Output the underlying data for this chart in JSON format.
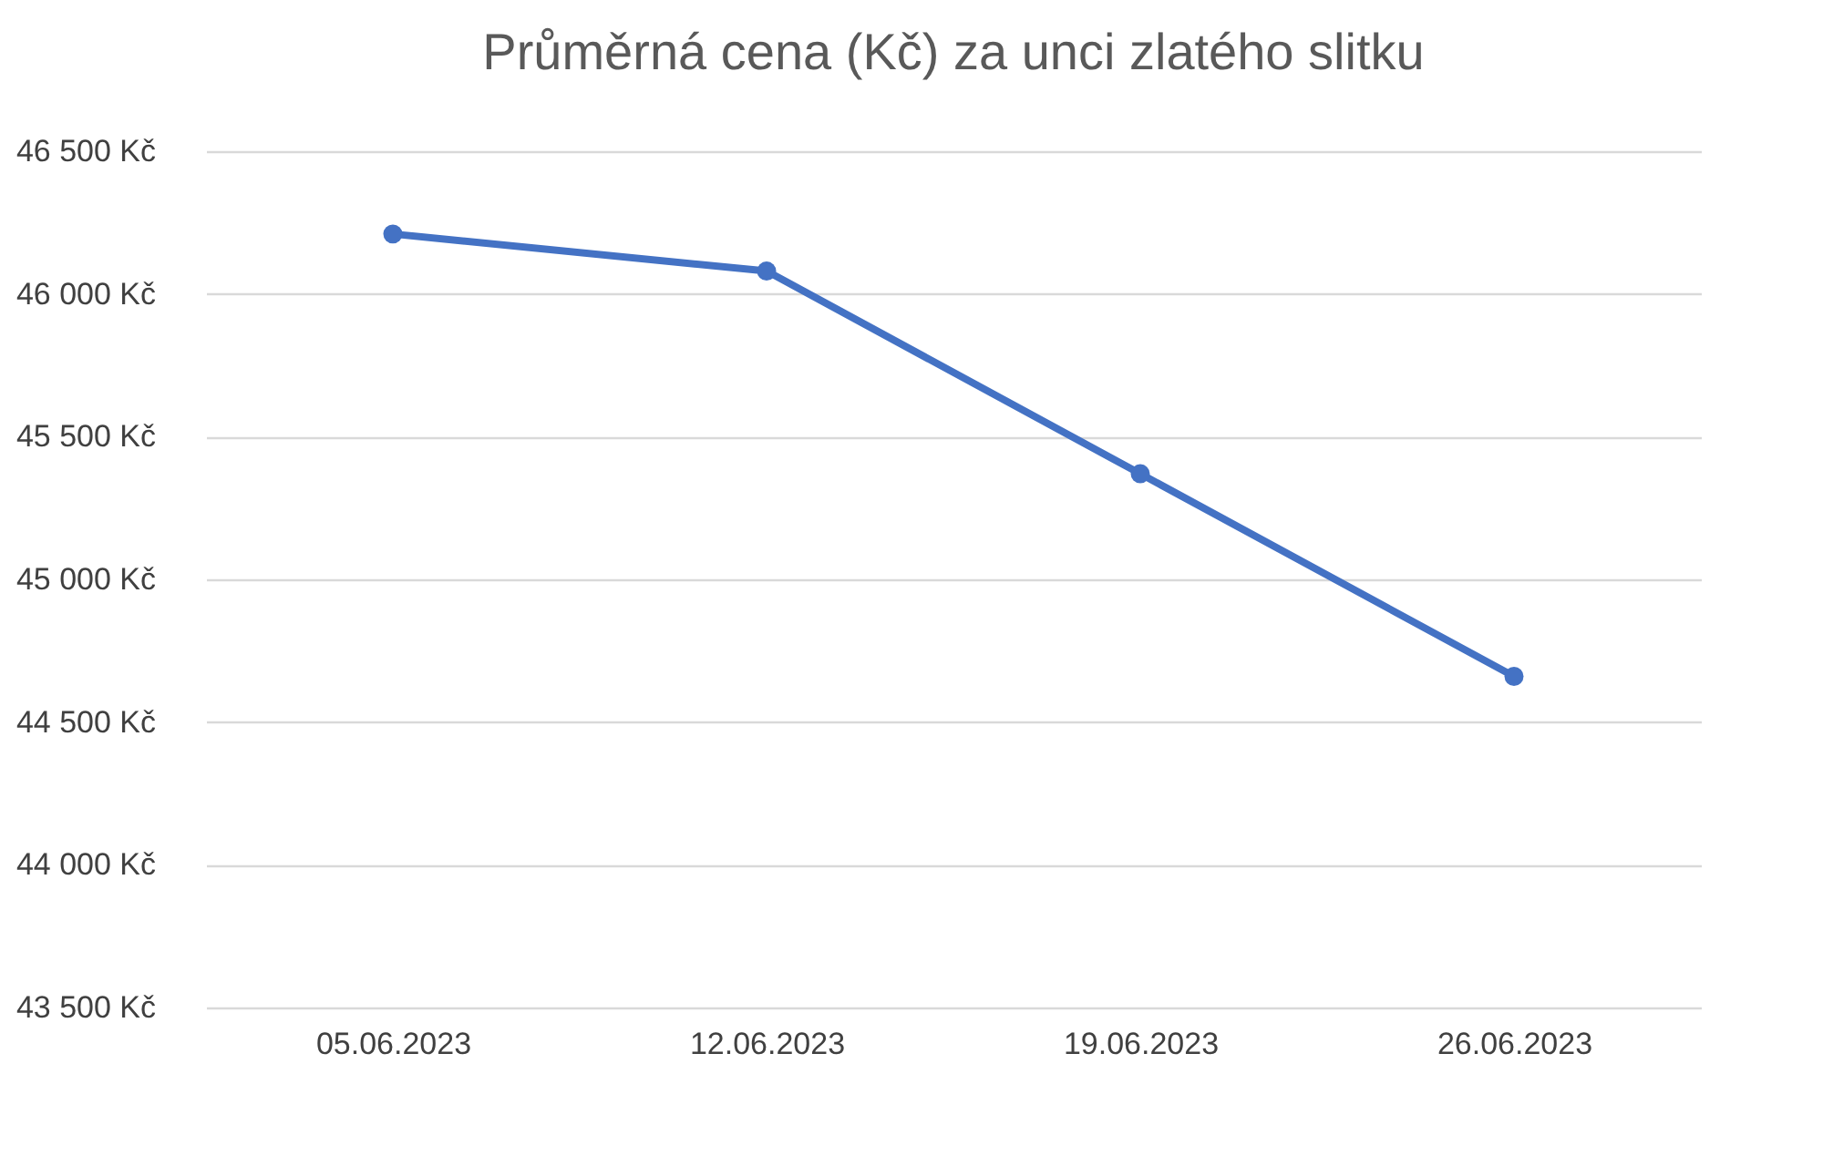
{
  "chart_data": {
    "type": "line",
    "title": "Průměrná cena (Kč) za unci zlatého slitku",
    "categories": [
      "05.06.2023",
      "12.06.2023",
      "19.06.2023",
      "26.06.2023"
    ],
    "series": [
      {
        "color": "#4472c4",
        "values": [
          46210,
          46080,
          45370,
          44660
        ]
      }
    ],
    "ylim": [
      43500,
      46500
    ],
    "yticks": [
      {
        "value": 43500,
        "label": "43 500 Kč"
      },
      {
        "value": 44000,
        "label": "44 000 Kč"
      },
      {
        "value": 44500,
        "label": "44 500 Kč"
      },
      {
        "value": 45000,
        "label": "45 000 Kč"
      },
      {
        "value": 45500,
        "label": "45 500 Kč"
      },
      {
        "value": 46000,
        "label": "46 000 Kč"
      },
      {
        "value": 46500,
        "label": "46 500 Kč"
      }
    ],
    "grid": "y",
    "marker": "circle",
    "line_style": "solid"
  }
}
